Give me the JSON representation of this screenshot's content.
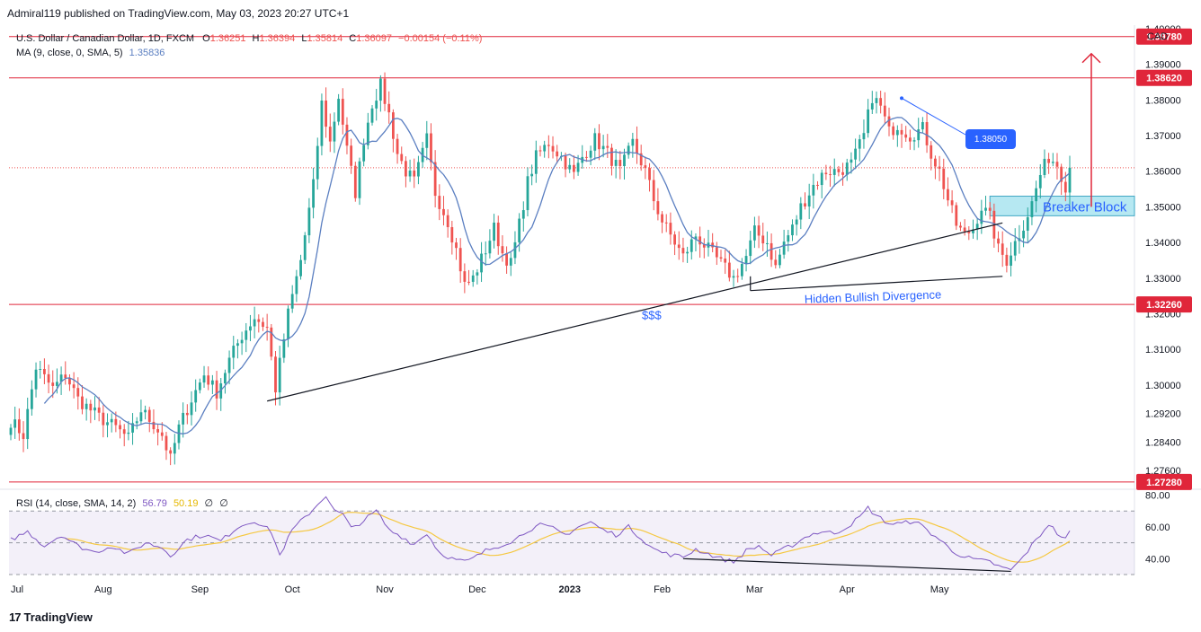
{
  "header": {
    "published": "Admiral119 published on TradingView.com, May 03, 2023 20:27 UTC+1"
  },
  "legend": {
    "symbol": "U.S. Dollar / Canadian Dollar, 1D, FXCM",
    "o_label": "O",
    "o_value": "1.36251",
    "h_label": "H",
    "h_value": "1.36394",
    "l_label": "L",
    "l_value": "1.35814",
    "c_label": "C",
    "c_value": "1.36097",
    "change": "−0.00154 (−0.11%)",
    "ma_label": "MA (9, close, 0, SMA, 5)",
    "ma_value": "1.35836"
  },
  "rsi_legend": {
    "label": "RSI (14, close, SMA, 14, 2)",
    "rsi_value": "56.79",
    "sma_value": "50.19",
    "extra1": "∅",
    "extra2": "∅"
  },
  "currency": "CAD",
  "branding": {
    "logo_text": "TradingView",
    "logo_mark": "17"
  },
  "colors": {
    "up": "#26a69a",
    "down": "#ef5350",
    "ma": "#5b7fc1",
    "hline": "#e0263a",
    "rsi": "#7e57c2",
    "rsi_ma": "#f5c842",
    "breaker_fill": "#a9e4f0",
    "label_blue": "#2962ff"
  },
  "annotations": {
    "breaker_block": "Breaker Block",
    "hidden_divergence": "Hidden Bullish Divergence",
    "liquidity": "$$$",
    "callout": "1.38050"
  },
  "chart_data": [
    {
      "type": "candlestick",
      "title": "U.S. Dollar / Canadian Dollar, 1D, FXCM",
      "ylim": [
        1.2715,
        1.401
      ],
      "y_ticks": [
        "1.40000",
        "1.39000",
        "1.38000",
        "1.37000",
        "1.36000",
        "1.35000",
        "1.34000",
        "1.33000",
        "1.32000",
        "1.31000",
        "1.30000",
        "1.29200",
        "1.28400",
        "1.27600"
      ],
      "x_ticks": [
        "Jul",
        "Aug",
        "Sep",
        "Oct",
        "Nov",
        "Dec",
        "2023",
        "Feb",
        "Mar",
        "Apr",
        "May"
      ],
      "horizontal_levels": [
        "1.39780",
        "1.38620",
        "1.32260",
        "1.27280"
      ],
      "last_price": 1.36097,
      "anchors": [
        [
          0,
          1.29
        ],
        [
          3,
          1.286
        ],
        [
          6,
          1.305
        ],
        [
          10,
          1.299
        ],
        [
          13,
          1.303
        ],
        [
          16,
          1.296
        ],
        [
          21,
          1.291
        ],
        [
          25,
          1.288
        ],
        [
          28,
          1.285
        ],
        [
          31,
          1.293
        ],
        [
          34,
          1.289
        ],
        [
          36,
          1.286
        ],
        [
          38,
          1.279
        ],
        [
          40,
          1.288
        ],
        [
          43,
          1.296
        ],
        [
          46,
          1.303
        ],
        [
          49,
          1.298
        ],
        [
          52,
          1.307
        ],
        [
          55,
          1.314
        ],
        [
          58,
          1.319
        ],
        [
          61,
          1.316
        ],
        [
          63,
          1.299
        ],
        [
          66,
          1.32
        ],
        [
          69,
          1.335
        ],
        [
          72,
          1.356
        ],
        [
          74,
          1.379
        ],
        [
          76,
          1.368
        ],
        [
          78,
          1.381
        ],
        [
          80,
          1.366
        ],
        [
          82,
          1.354
        ],
        [
          84,
          1.369
        ],
        [
          86,
          1.379
        ],
        [
          88,
          1.384
        ],
        [
          90,
          1.376
        ],
        [
          92,
          1.365
        ],
        [
          94,
          1.36
        ],
        [
          96,
          1.357
        ],
        [
          99,
          1.369
        ],
        [
          101,
          1.354
        ],
        [
          104,
          1.346
        ],
        [
          106,
          1.338
        ],
        [
          108,
          1.328
        ],
        [
          110,
          1.33
        ],
        [
          113,
          1.338
        ],
        [
          115,
          1.344
        ],
        [
          117,
          1.337
        ],
        [
          119,
          1.334
        ],
        [
          121,
          1.345
        ],
        [
          123,
          1.357
        ],
        [
          125,
          1.364
        ],
        [
          128,
          1.368
        ],
        [
          131,
          1.364
        ],
        [
          134,
          1.359
        ],
        [
          136,
          1.364
        ],
        [
          139,
          1.369
        ],
        [
          142,
          1.365
        ],
        [
          145,
          1.36
        ],
        [
          148,
          1.368
        ],
        [
          151,
          1.36
        ],
        [
          153,
          1.352
        ],
        [
          155,
          1.346
        ],
        [
          158,
          1.34
        ],
        [
          160,
          1.336
        ],
        [
          163,
          1.342
        ],
        [
          166,
          1.338
        ],
        [
          169,
          1.334
        ],
        [
          172,
          1.33
        ],
        [
          175,
          1.336
        ],
        [
          177,
          1.343
        ],
        [
          180,
          1.34
        ],
        [
          182,
          1.333
        ],
        [
          184,
          1.34
        ],
        [
          186,
          1.344
        ],
        [
          188,
          1.35
        ],
        [
          191,
          1.356
        ],
        [
          194,
          1.36
        ],
        [
          197,
          1.36
        ],
        [
          200,
          1.362
        ],
        [
          203,
          1.37
        ],
        [
          205,
          1.381
        ],
        [
          207,
          1.378
        ],
        [
          209,
          1.371
        ],
        [
          211,
          1.373
        ],
        [
          214,
          1.37
        ],
        [
          217,
          1.372
        ],
        [
          219,
          1.365
        ],
        [
          221,
          1.36
        ],
        [
          223,
          1.352
        ],
        [
          225,
          1.345
        ],
        [
          227,
          1.342
        ],
        [
          229,
          1.344
        ],
        [
          231,
          1.35
        ],
        [
          233,
          1.347
        ],
        [
          235,
          1.338
        ],
        [
          237,
          1.335
        ],
        [
          239,
          1.34
        ],
        [
          241,
          1.345
        ],
        [
          243,
          1.351
        ],
        [
          245,
          1.359
        ],
        [
          247,
          1.364
        ],
        [
          249,
          1.362
        ],
        [
          251,
          1.356
        ],
        [
          252,
          1.361
        ]
      ],
      "ma_period": 9
    },
    {
      "type": "line",
      "title": "RSI (14, close, SMA, 14, 2)",
      "ylim": [
        30,
        82
      ],
      "y_ticks": [
        "80.00",
        "60.00",
        "40.00"
      ],
      "bands": [
        30,
        50,
        70
      ],
      "rsi_anchors": [
        [
          0,
          52
        ],
        [
          4,
          57
        ],
        [
          8,
          48
        ],
        [
          12,
          55
        ],
        [
          16,
          48
        ],
        [
          20,
          44
        ],
        [
          24,
          48
        ],
        [
          28,
          43
        ],
        [
          32,
          50
        ],
        [
          36,
          47
        ],
        [
          38,
          42
        ],
        [
          42,
          52
        ],
        [
          46,
          55
        ],
        [
          50,
          51
        ],
        [
          54,
          60
        ],
        [
          58,
          64
        ],
        [
          62,
          57
        ],
        [
          64,
          42
        ],
        [
          67,
          58
        ],
        [
          70,
          66
        ],
        [
          73,
          74
        ],
        [
          75,
          80
        ],
        [
          77,
          70
        ],
        [
          79,
          68
        ],
        [
          81,
          59
        ],
        [
          84,
          64
        ],
        [
          87,
          70
        ],
        [
          90,
          58
        ],
        [
          93,
          54
        ],
        [
          96,
          49
        ],
        [
          99,
          56
        ],
        [
          102,
          44
        ],
        [
          105,
          40
        ],
        [
          108,
          38
        ],
        [
          110,
          40
        ],
        [
          113,
          45
        ],
        [
          116,
          48
        ],
        [
          120,
          52
        ],
        [
          123,
          58
        ],
        [
          126,
          61
        ],
        [
          129,
          59
        ],
        [
          132,
          55
        ],
        [
          135,
          60
        ],
        [
          138,
          63
        ],
        [
          141,
          58
        ],
        [
          144,
          55
        ],
        [
          147,
          60
        ],
        [
          150,
          53
        ],
        [
          153,
          46
        ],
        [
          156,
          43
        ],
        [
          160,
          41
        ],
        [
          163,
          46
        ],
        [
          166,
          43
        ],
        [
          169,
          40
        ],
        [
          172,
          38
        ],
        [
          175,
          45
        ],
        [
          178,
          48
        ],
        [
          181,
          42
        ],
        [
          184,
          46
        ],
        [
          187,
          50
        ],
        [
          190,
          55
        ],
        [
          193,
          57
        ],
        [
          196,
          56
        ],
        [
          199,
          60
        ],
        [
          202,
          66
        ],
        [
          204,
          72
        ],
        [
          206,
          67
        ],
        [
          209,
          62
        ],
        [
          212,
          62
        ],
        [
          215,
          64
        ],
        [
          218,
          58
        ],
        [
          221,
          52
        ],
        [
          224,
          45
        ],
        [
          227,
          41
        ],
        [
          230,
          39
        ],
        [
          233,
          38
        ],
        [
          236,
          34
        ],
        [
          238,
          33
        ],
        [
          240,
          38
        ],
        [
          242,
          45
        ],
        [
          245,
          55
        ],
        [
          247,
          62
        ],
        [
          249,
          56
        ],
        [
          251,
          52
        ],
        [
          252,
          57
        ]
      ],
      "divergence_line": [
        [
          160,
          40
        ],
        [
          238,
          32
        ]
      ],
      "ma_smoothing": 14
    }
  ]
}
